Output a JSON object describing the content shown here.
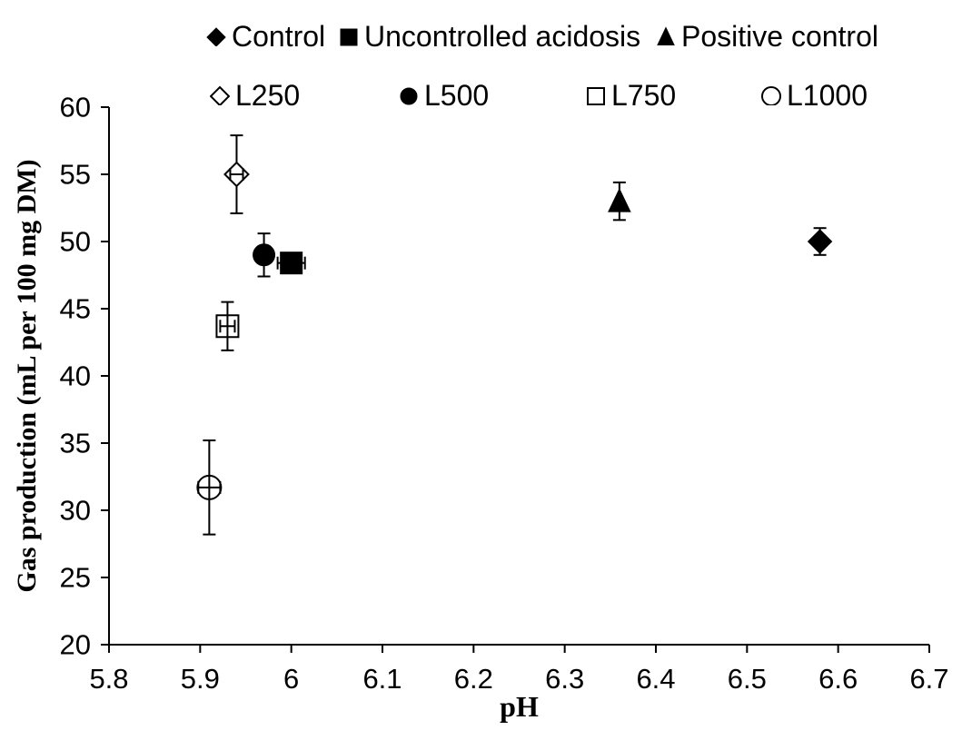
{
  "figure": {
    "background_color": "#ffffff",
    "foreground_color": "#000000"
  },
  "legend": {
    "row1": [
      {
        "label": "Control",
        "marker": "diamond",
        "filled": true
      },
      {
        "label": "Uncontrolled acidosis",
        "marker": "square",
        "filled": true
      },
      {
        "label": "Positive control",
        "marker": "triangle",
        "filled": true
      }
    ],
    "row2": [
      {
        "label": "L250",
        "marker": "diamond",
        "filled": false
      },
      {
        "label": "L500",
        "marker": "circle",
        "filled": true
      },
      {
        "label": "L750",
        "marker": "square",
        "filled": false
      },
      {
        "label": "L1000",
        "marker": "circle",
        "filled": false
      }
    ]
  },
  "chart_data": {
    "type": "scatter",
    "title": "",
    "xlabel": "pH",
    "ylabel": "Gas production (mL  per 100 mg DM)",
    "xlim": [
      5.8,
      6.7
    ],
    "ylim": [
      20,
      60
    ],
    "x_tick_labels": [
      "5.8",
      "5.9",
      "6",
      "6.1",
      "6.2",
      "6.3",
      "6.4",
      "6.5",
      "6.6",
      "6.7"
    ],
    "x_tick_values": [
      5.8,
      5.9,
      6.0,
      6.1,
      6.2,
      6.3,
      6.4,
      6.5,
      6.6,
      6.7
    ],
    "y_tick_values": [
      20,
      25,
      30,
      35,
      40,
      45,
      50,
      55,
      60
    ],
    "grid": false,
    "legend_position": "top",
    "series": [
      {
        "name": "Control",
        "marker": "diamond",
        "filled": true,
        "x": 6.58,
        "y": 50.0,
        "y_err": 1.0,
        "x_err": 0
      },
      {
        "name": "Uncontrolled acidosis",
        "marker": "square",
        "filled": true,
        "x": 6.0,
        "y": 48.4,
        "y_err": 0.6,
        "x_err": 0.015
      },
      {
        "name": "Positive control",
        "marker": "triangle",
        "filled": true,
        "x": 6.36,
        "y": 53.0,
        "y_err": 1.4,
        "x_err": 0
      },
      {
        "name": "L250",
        "marker": "diamond",
        "filled": false,
        "x": 5.94,
        "y": 55.0,
        "y_err": 2.9,
        "x_err": 0.007
      },
      {
        "name": "L500",
        "marker": "circle",
        "filled": true,
        "x": 5.97,
        "y": 49.0,
        "y_err": 1.6,
        "x_err": 0
      },
      {
        "name": "L750",
        "marker": "square",
        "filled": false,
        "x": 5.93,
        "y": 43.7,
        "y_err": 1.8,
        "x_err": 0.008
      },
      {
        "name": "L1000",
        "marker": "circle",
        "filled": false,
        "x": 5.91,
        "y": 31.7,
        "y_err": 3.5,
        "x_err": 0.012
      }
    ]
  }
}
